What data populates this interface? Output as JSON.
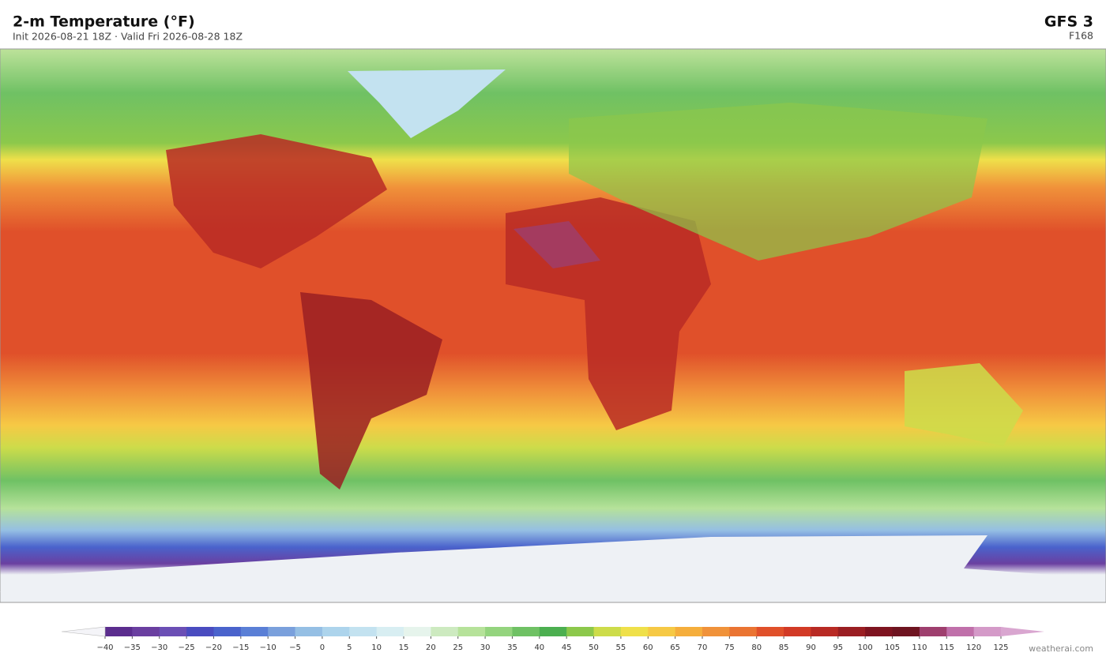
{
  "header": {
    "title": "2-m Temperature  (°F)",
    "subtitle": "Init 2026-08-21 18Z  ·  Valid Fri 2026-08-28 18Z",
    "model": "GFS  3",
    "forecast_hour": "F168"
  },
  "colorbar": {
    "ticks": [
      {
        "value": -40,
        "label": "−40"
      },
      {
        "value": -35,
        "label": "−35"
      },
      {
        "value": -30,
        "label": "−30"
      },
      {
        "value": -25,
        "label": "−25"
      },
      {
        "value": -20,
        "label": "−20"
      },
      {
        "value": -15,
        "label": "−15"
      },
      {
        "value": -10,
        "label": "−10"
      },
      {
        "value": -5,
        "label": "−5"
      },
      0,
      5,
      10,
      15,
      20,
      25,
      30,
      35,
      40,
      45,
      50,
      55,
      60,
      65,
      70,
      75,
      80,
      85,
      90,
      95,
      100,
      105,
      110,
      115,
      120,
      125
    ],
    "colors": [
      "#5b2d8e",
      "#6a3fa0",
      "#6b4fb5",
      "#4a4cc0",
      "#4a63cc",
      "#5a7fd6",
      "#7aa0dc",
      "#95bfe4",
      "#add4ec",
      "#c3e2f0",
      "#d8eef2",
      "#e6f4ec",
      "#cdeac0",
      "#b6e29a",
      "#94d47e",
      "#6fc164",
      "#4caf50",
      "#8cc84b",
      "#cddc4a",
      "#efe04a",
      "#f6c945",
      "#f5ae3c",
      "#f0923a",
      "#ea7432",
      "#e0502a",
      "#d23a26",
      "#b82a24",
      "#9a1e22",
      "#7e1420",
      "#6e1420",
      "#9e3f6e",
      "#c070aa",
      "#d49ac8"
    ],
    "under_color": "#f4f4f8",
    "over_color": "#d9a6d0"
  },
  "footer": {
    "credit": "weatherai.com"
  }
}
